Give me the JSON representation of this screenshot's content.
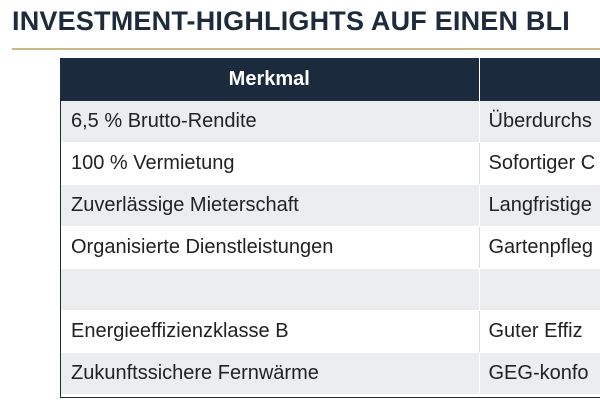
{
  "title": "INVESTMENT-HIGHLIGHTS AUF EINEN BLI",
  "table": {
    "headers": [
      "Merkmal",
      ""
    ],
    "rows": [
      [
        "6,5 % Brutto-Rendite",
        "Überdurchs"
      ],
      [
        "100 % Vermietung",
        "Sofortiger C"
      ],
      [
        "Zuverlässige Mieterschaft",
        "Langfristige"
      ],
      [
        "Organisierte Dienstleistungen",
        "Gartenpfleg"
      ],
      [
        "",
        ""
      ],
      [
        "Energieeffizienzklasse B",
        "Guter Effiz"
      ],
      [
        "Zukunftssichere Fernwärme",
        "GEG-konfo"
      ]
    ]
  },
  "colors": {
    "header_bg": "#1b2a3d",
    "title_text": "#1e2b3c",
    "rule": "#c9b98a",
    "row_alt": "#ecedef"
  }
}
